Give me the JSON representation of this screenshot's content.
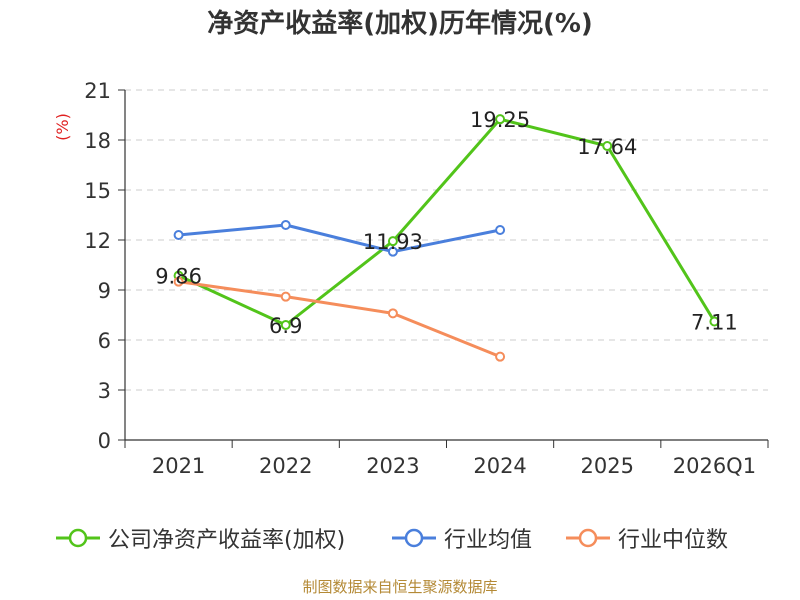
{
  "chart_data": {
    "type": "line",
    "title": "净资产收益率(加权)历年情况(%)",
    "ylabel": "(%)",
    "xlabel": "",
    "categories": [
      "2021",
      "2022",
      "2023",
      "2024",
      "2025",
      "2026Q1"
    ],
    "ylim": [
      0,
      21
    ],
    "yticks": [
      0,
      3,
      6,
      9,
      12,
      15,
      18,
      21
    ],
    "grid": true,
    "legend_position": "bottom",
    "series": [
      {
        "name": "公司净资产收益率(加权)",
        "color": "#52c41a",
        "values": [
          9.86,
          6.9,
          11.93,
          19.25,
          17.64,
          7.11
        ],
        "labels": [
          "9.86",
          "6.9",
          "11.93",
          "19.25",
          "17.64",
          "7.11"
        ]
      },
      {
        "name": "行业均值",
        "color": "#4a7fdc",
        "values": [
          12.3,
          12.9,
          11.3,
          12.6,
          null,
          null
        ]
      },
      {
        "name": "行业中位数",
        "color": "#f58d5b",
        "values": [
          9.5,
          8.6,
          7.6,
          5.0,
          null,
          null
        ]
      }
    ]
  },
  "source": "制图数据来自恒生聚源数据库"
}
